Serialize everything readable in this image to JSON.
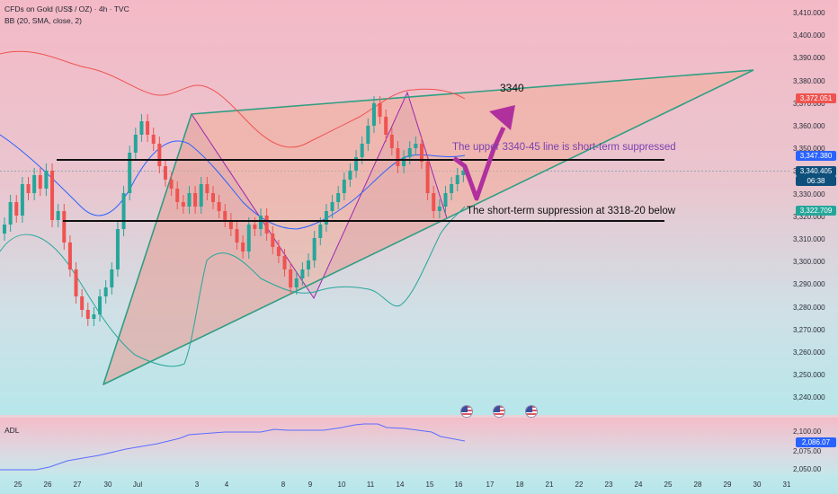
{
  "header": {
    "symbol_line": "CFDs on Gold (US$ / OZ) · 4h · TVC",
    "indicator_line": "BB (20, SMA, close, 2)"
  },
  "price_axis": {
    "ticks": [
      "3,410.000",
      "3,400.000",
      "3,390.000",
      "3,380.000",
      "3,370.000",
      "3,360.000",
      "3,350.000",
      "3,340.000",
      "3,330.000",
      "3,320.000",
      "3,310.000",
      "3,300.000",
      "3,290.000",
      "3,280.000",
      "3,270.000",
      "3,260.000",
      "3,250.000",
      "3,240.000"
    ],
    "tags": {
      "upper_band": "3,372.051",
      "middle_band": "3,347.380",
      "last_price": "3,340.405",
      "countdown": "06:38",
      "lower_band": "3,322.709"
    }
  },
  "adl": {
    "label": "ADL",
    "ticks": [
      "2,100.00",
      "2,075.00",
      "2,050.00"
    ],
    "last_value": "2,086.07"
  },
  "time_axis": [
    "25",
    "26",
    "27",
    "30",
    "Jul",
    "3",
    "4",
    "8",
    "9",
    "10",
    "11",
    "14",
    "15",
    "16",
    "17",
    "18",
    "21",
    "22",
    "23",
    "24",
    "25",
    "28",
    "29",
    "30",
    "31"
  ],
  "annotations": {
    "target": "3340",
    "upper_note": "The upper 3340-45 line is short-term suppressed",
    "lower_note": "The short-term suppression at 3318-20 below"
  },
  "colors": {
    "bull": "#26a69a",
    "bear": "#ef5350",
    "band": "#ef5350",
    "basis": "#2962ff",
    "lower_band": "#26a69a",
    "triangle_edge": "#2f9e83",
    "zigzag": "#9c27b0",
    "arrow": "#b0309e",
    "adl_line": "#5b6cff"
  },
  "icons": [
    "us-flag-icon",
    "us-flag-icon",
    "us-flag-icon"
  ]
}
